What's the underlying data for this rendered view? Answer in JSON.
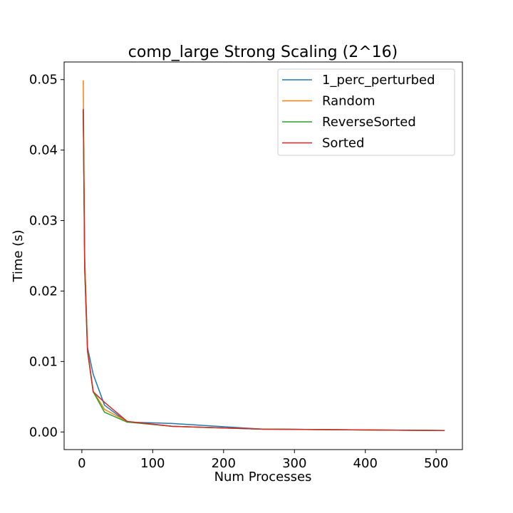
{
  "chart_data": {
    "type": "line",
    "title": "comp_large Strong Scaling (2^16)",
    "xlabel": "Num Processes",
    "ylabel": "Time (s)",
    "xlim": [
      -25,
      537
    ],
    "ylim": [
      -0.0025,
      0.0525
    ],
    "xticks": [
      0,
      100,
      200,
      300,
      400,
      500
    ],
    "xtick_labels": [
      "0",
      "100",
      "200",
      "300",
      "400",
      "500"
    ],
    "yticks": [
      0.0,
      0.01,
      0.02,
      0.03,
      0.04,
      0.05
    ],
    "ytick_labels": [
      "0.00",
      "0.01",
      "0.02",
      "0.03",
      "0.04",
      "0.05"
    ],
    "grid": false,
    "legend_position": "top-right",
    "x": [
      2,
      4,
      8,
      16,
      32,
      64,
      128,
      256,
      512
    ],
    "series": [
      {
        "name": "1_perc_perturbed",
        "color": "#1f77b4",
        "values": [
          0.0456,
          0.0245,
          0.012,
          0.0082,
          0.0038,
          0.0014,
          0.0012,
          0.0004,
          0.0002
        ]
      },
      {
        "name": "Random",
        "color": "#ff7f0e",
        "values": [
          0.0499,
          0.0248,
          0.0118,
          0.0058,
          0.0032,
          0.0015,
          0.0008,
          0.0004,
          0.0002
        ]
      },
      {
        "name": "ReverseSorted",
        "color": "#2ca02c",
        "values": [
          0.0458,
          0.0232,
          0.0115,
          0.0057,
          0.0028,
          0.0014,
          0.0008,
          0.0004,
          0.0002
        ]
      },
      {
        "name": "Sorted",
        "color": "#d62728",
        "values": [
          0.0458,
          0.0232,
          0.0115,
          0.0057,
          0.0042,
          0.0015,
          0.0008,
          0.0004,
          0.0002
        ]
      }
    ]
  }
}
